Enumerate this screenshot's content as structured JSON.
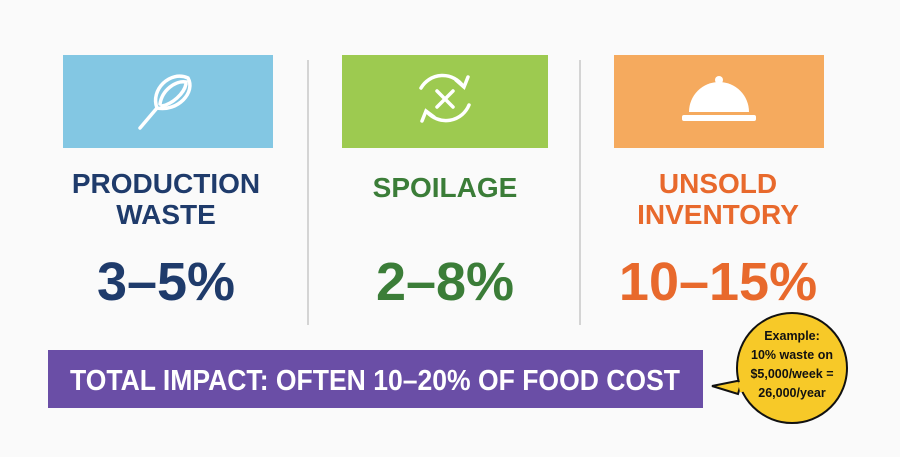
{
  "columns": [
    {
      "title": [
        "PRODUCTION",
        "WASTE"
      ],
      "range": "3–5%"
    },
    {
      "title": [
        "SPOILAGE"
      ],
      "range": "2–8%"
    },
    {
      "title": [
        "UNSOLD",
        "INVENTORY"
      ],
      "range": "10–15%"
    }
  ],
  "banner": "TOTAL IMPACT: OFTEN 10–20% OF FOOD COST",
  "callout": [
    "Example:",
    "10% waste on",
    "$5,000/week =",
    "26,000/year"
  ]
}
